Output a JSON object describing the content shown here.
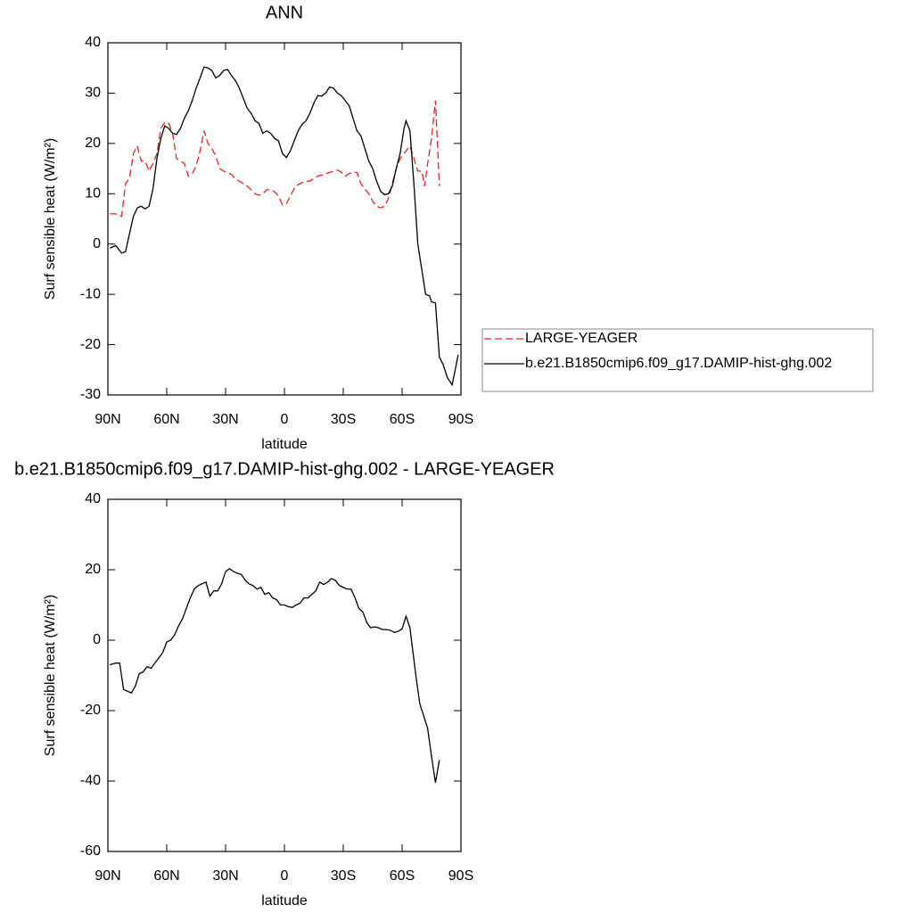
{
  "chart_data": [
    {
      "type": "line",
      "title": "ANN",
      "xlabel": "latitude",
      "ylabel": "Surf sensible heat (W/m²)",
      "xlim": [
        90,
        -90
      ],
      "ylim": [
        -30,
        40
      ],
      "xticks": [
        {
          "value": 90,
          "label": "90N"
        },
        {
          "value": 60,
          "label": "60N"
        },
        {
          "value": 30,
          "label": "30N"
        },
        0,
        {
          "value": -30,
          "label": "30S"
        },
        {
          "value": -60,
          "label": "60S"
        },
        {
          "value": -90,
          "label": "90S"
        }
      ],
      "yticks": [
        -30,
        -20,
        -10,
        0,
        10,
        20,
        30,
        40
      ],
      "legend": "right",
      "series": [
        {
          "name": "LARGE-YEAGER",
          "color": "#e8202a",
          "dashed": true,
          "x": [
            89,
            86,
            83,
            81,
            79,
            77,
            75,
            73,
            71,
            69,
            67,
            65,
            63,
            61,
            59,
            57,
            55,
            53,
            51,
            49,
            47,
            45,
            43,
            41,
            39,
            37,
            35,
            33,
            31,
            29,
            27,
            25,
            23,
            21,
            19,
            17,
            15,
            13,
            11,
            9,
            7,
            5,
            3,
            1,
            -1,
            -3,
            -5,
            -7,
            -9,
            -11,
            -13,
            -15,
            -17,
            -19,
            -21,
            -23,
            -25,
            -27,
            -29,
            -31,
            -33,
            -35,
            -37,
            -39,
            -41,
            -43,
            -45,
            -47,
            -49,
            -51,
            -53,
            -55,
            -57,
            -59,
            -61,
            -64,
            -66,
            -68,
            -70,
            -71.5,
            -73,
            -75,
            -77,
            -79
          ],
          "values": [
            6,
            6,
            5.5,
            12,
            13,
            18,
            19.5,
            16.5,
            16.5,
            14.5,
            16,
            18,
            23,
            24.2,
            24,
            22,
            17,
            16.5,
            16,
            13.5,
            14,
            15.5,
            18.5,
            22.5,
            20,
            19,
            17.5,
            15,
            14.5,
            14.2,
            13.8,
            13,
            12.5,
            12,
            11.5,
            10.8,
            10,
            9.7,
            10,
            10.8,
            10.8,
            10.4,
            9.5,
            7.8,
            8,
            9.5,
            11,
            11.8,
            12.2,
            12.5,
            12.5,
            13,
            13.5,
            13.7,
            14,
            14.2,
            14.5,
            14.7,
            14.3,
            13.5,
            14,
            14.3,
            14.2,
            12,
            11,
            10,
            8.5,
            7.5,
            7.2,
            7.5,
            9,
            12,
            15,
            17,
            18,
            19.5,
            17,
            14.5,
            14.5,
            11.5,
            16,
            21,
            28.5,
            11.5
          ]
        },
        {
          "name": "b.e21.B1850cmip6.f09_g17.DAMIP-hist-ghg.002",
          "color": "#000000",
          "dashed": false,
          "x": [
            89,
            86,
            83,
            81,
            79,
            77,
            75,
            73,
            71,
            69,
            67,
            65,
            63,
            61,
            59,
            57,
            55,
            53,
            51,
            49,
            47,
            45,
            43,
            41,
            39,
            37,
            35,
            33,
            31,
            29,
            27,
            25,
            23,
            21,
            19,
            17,
            15,
            13,
            11,
            9,
            7,
            5,
            3,
            1,
            -1,
            -3,
            -5,
            -7,
            -9,
            -11,
            -13,
            -15,
            -17,
            -19,
            -21,
            -23,
            -25,
            -27,
            -29,
            -31,
            -33,
            -35,
            -37,
            -39,
            -41,
            -43,
            -45,
            -47,
            -49,
            -51,
            -53,
            -55,
            -57,
            -59,
            -61,
            -62,
            -64,
            -66,
            -68,
            -70,
            -72,
            -74,
            -75,
            -77,
            -79,
            -81,
            -83,
            -85.5,
            -88.6
          ],
          "values": [
            -0.8,
            -0.3,
            -1.8,
            -1.5,
            2,
            5.5,
            7.2,
            7.5,
            7,
            7.5,
            11,
            17,
            21,
            23.5,
            23,
            22,
            21.8,
            23,
            25,
            26.5,
            28.5,
            31,
            33,
            35.2,
            35,
            34.5,
            33,
            33.5,
            34.5,
            34.7,
            33.5,
            32.5,
            31,
            29,
            27,
            26,
            24.5,
            24,
            22,
            22.5,
            22,
            21,
            20.5,
            18,
            17.2,
            18.5,
            20.5,
            22.5,
            23.8,
            24.5,
            26,
            28,
            29.5,
            29.4,
            30,
            31.2,
            31,
            30,
            29.5,
            28.5,
            27.5,
            25,
            22.5,
            21.5,
            19,
            16.5,
            15,
            12.5,
            10.5,
            9.8,
            10,
            11.5,
            15,
            18,
            23,
            24.5,
            22.5,
            12,
            0,
            -5,
            -10,
            -10.3,
            -11.5,
            -11.7,
            -22.5,
            -24,
            -26.5,
            -28,
            -22
          ]
        }
      ]
    },
    {
      "type": "line",
      "title": "b.e21.B1850cmip6.f09_g17.DAMIP-hist-ghg.002 - LARGE-YEAGER",
      "xlabel": "latitude",
      "ylabel": "Surf sensible heat (W/m²)",
      "xlim": [
        90,
        -90
      ],
      "ylim": [
        -60,
        40
      ],
      "xticks": [
        {
          "value": 90,
          "label": "90N"
        },
        {
          "value": 60,
          "label": "60N"
        },
        {
          "value": 30,
          "label": "30N"
        },
        0,
        {
          "value": -30,
          "label": "30S"
        },
        {
          "value": -60,
          "label": "60S"
        },
        {
          "value": -90,
          "label": "90S"
        }
      ],
      "yticks": [
        -60,
        -40,
        -20,
        0,
        20,
        40
      ],
      "color": "#000000",
      "x": [
        89,
        86,
        84,
        82,
        80,
        78,
        76,
        74,
        72,
        70,
        68,
        66,
        64,
        62,
        60,
        58,
        56,
        54,
        52,
        50,
        48,
        46,
        44,
        42,
        40,
        38,
        36,
        34,
        32,
        30,
        28,
        26,
        24,
        22,
        20,
        18,
        16,
        14,
        12,
        10,
        8,
        6,
        4,
        2,
        0,
        -2,
        -4,
        -6,
        -8,
        -10,
        -12,
        -14,
        -16,
        -18,
        -20,
        -22,
        -24,
        -26,
        -28,
        -30,
        -32,
        -34,
        -36,
        -38,
        -40,
        -42,
        -44,
        -46,
        -48,
        -50,
        -52,
        -54,
        -56,
        -58,
        -60,
        -62,
        -64,
        -67,
        -69,
        -71,
        -73,
        -75,
        -77,
        -79
      ],
      "values": [
        -7,
        -6.5,
        -6.5,
        -14,
        -14.5,
        -15,
        -13,
        -9.5,
        -9,
        -7.5,
        -8,
        -6.5,
        -5,
        -3.5,
        -0.5,
        0,
        1.5,
        4,
        6,
        9,
        12,
        14.5,
        15.5,
        16,
        16.5,
        12.5,
        14,
        14,
        16,
        19.5,
        20.3,
        19.5,
        19,
        18.7,
        17,
        16,
        15.5,
        14.5,
        15,
        13,
        13.5,
        12,
        11.5,
        10,
        10,
        9.5,
        9.3,
        10,
        10.5,
        12,
        12,
        13,
        14,
        16.5,
        15.8,
        16.5,
        17.5,
        17,
        15.5,
        15,
        14.5,
        14.5,
        12,
        9,
        8,
        5,
        3.5,
        3.8,
        3.5,
        3,
        3,
        2.8,
        2.2,
        2.5,
        3.2,
        6.8,
        3.5,
        -10,
        -18,
        -21.5,
        -25,
        -33,
        -40.5,
        -34
      ]
    }
  ]
}
